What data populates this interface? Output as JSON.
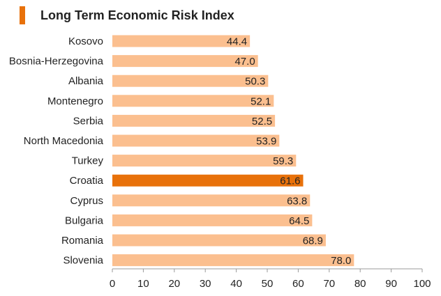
{
  "title": "Long Term Economic Risk Index",
  "colors": {
    "accent": "#e8710a",
    "bar": "#fbbf8f",
    "highlight": "#e8710a",
    "axis": "#999999"
  },
  "chart_data": {
    "type": "bar",
    "orientation": "horizontal",
    "title": "Long Term Economic Risk Index",
    "categories": [
      "Kosovo",
      "Bosnia-Herzegovina",
      "Albania",
      "Montenegro",
      "Serbia",
      "North Macedonia",
      "Turkey",
      "Croatia",
      "Cyprus",
      "Bulgaria",
      "Romania",
      "Slovenia"
    ],
    "values": [
      44.4,
      47.0,
      50.3,
      52.1,
      52.5,
      53.9,
      59.3,
      61.6,
      63.8,
      64.5,
      68.9,
      78.0
    ],
    "value_labels": [
      "44.4",
      "47.0",
      "50.3",
      "52.1",
      "52.5",
      "53.9",
      "59.3",
      "61.6",
      "63.8",
      "64.5",
      "68.9",
      "78.0"
    ],
    "highlight": "Croatia",
    "xlim": [
      0,
      100
    ],
    "xticks": [
      "0",
      "10",
      "20",
      "30",
      "40",
      "50",
      "60",
      "70",
      "80",
      "90",
      "100"
    ],
    "xlabel": "",
    "ylabel": "",
    "grid": false
  }
}
